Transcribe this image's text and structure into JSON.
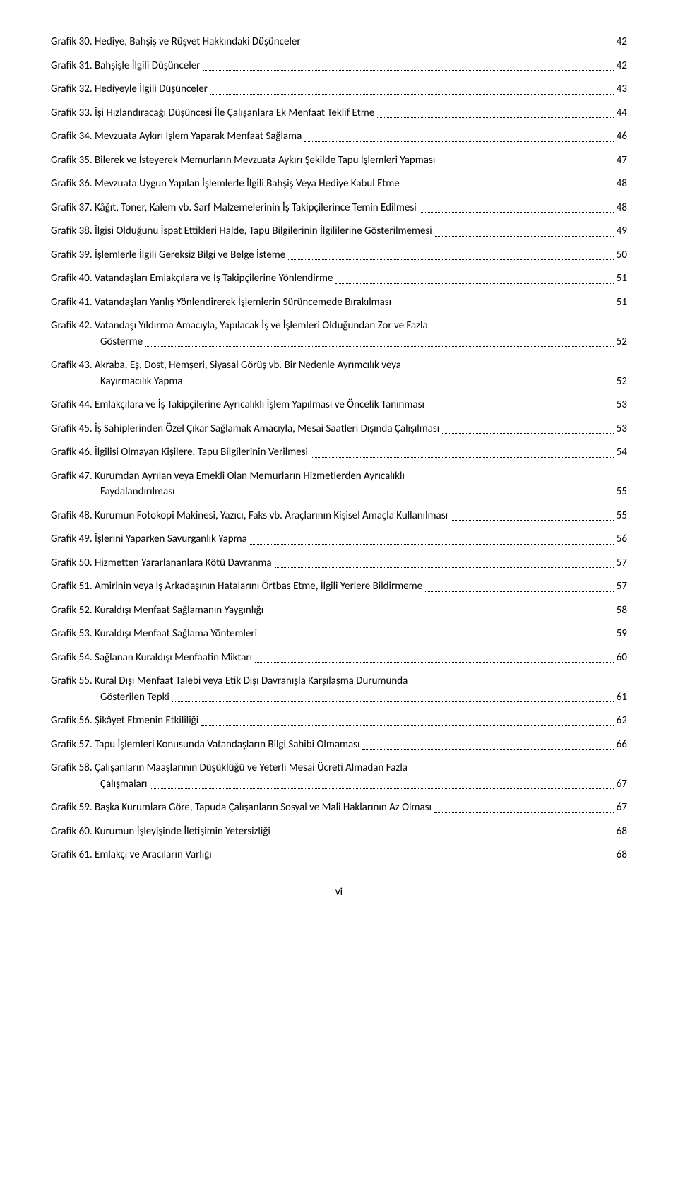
{
  "entries": [
    {
      "label": "Grafik 30.",
      "text": "Hediye, Bahşiş ve Rüşvet Hakkındaki Düşünceler",
      "page": "42"
    },
    {
      "label": "Grafik 31.",
      "text": "Bahşişle İlgili Düşünceler",
      "page": "42"
    },
    {
      "label": "Grafik 32.",
      "text": "Hediyeyle İlgili Düşünceler",
      "page": "43"
    },
    {
      "label": "Grafik 33.",
      "text": "İşi Hızlandıracağı Düşüncesi İle Çalışanlara Ek Menfaat Teklif Etme",
      "page": "44"
    },
    {
      "label": "Grafik 34.",
      "text": "Mevzuata Aykırı İşlem Yaparak Menfaat Sağlama",
      "page": "46"
    },
    {
      "label": "Grafik 35.",
      "text": "Bilerek ve İsteyerek Memurların Mevzuata Aykırı Şekilde Tapu İşlemleri Yapması",
      "page": "47"
    },
    {
      "label": "Grafik 36.",
      "text": "Mevzuata Uygun Yapılan İşlemlerle İlgili Bahşiş Veya Hediye Kabul Etme",
      "page": "48"
    },
    {
      "label": "Grafik 37.",
      "text": "Kâğıt, Toner, Kalem vb. Sarf Malzemelerinin İş Takipçilerince Temin Edilmesi",
      "page": "48"
    },
    {
      "label": "Grafik 38.",
      "text": "İlgisi Olduğunu İspat Ettikleri Halde, Tapu Bilgilerinin İlgililerine Gösterilmemesi",
      "page": "49"
    },
    {
      "label": "Grafik 39.",
      "text": "İşlemlerle İlgili Gereksiz Bilgi ve Belge İsteme",
      "page": "50"
    },
    {
      "label": "Grafik 40.",
      "text": "Vatandaşları Emlakçılara ve İş Takipçilerine Yönlendirme",
      "page": "51"
    },
    {
      "label": "Grafik 41.",
      "text": "Vatandaşları Yanlış Yönlendirerek İşlemlerin Sürüncemede Bırakılması",
      "page": "51"
    },
    {
      "label": "Grafik 42.",
      "line1": "Vatandaşı Yıldırma Amacıyla, Yapılacak İş ve İşlemleri Olduğundan Zor ve Fazla",
      "line2": "Gösterme",
      "page": "52",
      "multiline": true
    },
    {
      "label": "Grafik 43.",
      "line1": "Akraba, Eş, Dost, Hemşeri, Siyasal Görüş vb. Bir Nedenle Ayrımcılık veya",
      "line2": "Kayırmacılık Yapma",
      "page": "52",
      "multiline": true
    },
    {
      "label": "Grafik 44.",
      "text": "Emlakçılara ve İş Takipçilerine Ayrıcalıklı İşlem Yapılması ve Öncelik Tanınması",
      "page": "53"
    },
    {
      "label": "Grafik 45.",
      "text": "İş Sahiplerinden Özel Çıkar Sağlamak Amacıyla, Mesai Saatleri Dışında Çalışılması",
      "page": "53"
    },
    {
      "label": "Grafik 46.",
      "text": "İlgilisi Olmayan Kişilere, Tapu Bilgilerinin Verilmesi",
      "page": "54"
    },
    {
      "label": "Grafik 47.",
      "line1": "Kurumdan Ayrılan veya Emekli Olan Memurların Hizmetlerden Ayrıcalıklı",
      "line2": "Faydalandırılması",
      "page": "55",
      "multiline": true
    },
    {
      "label": "Grafik 48.",
      "text": "Kurumun Fotokopi Makinesi, Yazıcı, Faks vb. Araçlarının Kişisel Amaçla Kullanılması",
      "page": "55"
    },
    {
      "label": "Grafik 49.",
      "text": "İşlerini Yaparken Savurganlık Yapma",
      "page": "56"
    },
    {
      "label": "Grafik 50.",
      "text": "Hizmetten Yararlananlara Kötü Davranma",
      "page": "57"
    },
    {
      "label": "Grafik 51.",
      "text": "Amirinin veya İş Arkadaşının Hatalarını Örtbas Etme, İlgili Yerlere Bildirmeme",
      "page": "57"
    },
    {
      "label": "Grafik 52.",
      "text": "Kuraldışı Menfaat Sağlamanın Yaygınlığı",
      "page": "58"
    },
    {
      "label": "Grafik 53.",
      "text": "Kuraldışı Menfaat Sağlama Yöntemleri",
      "page": "59"
    },
    {
      "label": "Grafik 54.",
      "text": "Sağlanan Kuraldışı Menfaatin Miktarı",
      "page": "60"
    },
    {
      "label": "Grafik 55.",
      "line1": "Kural Dışı Menfaat Talebi veya Etik Dışı Davranışla Karşılaşma Durumunda",
      "line2": "Gösterilen Tepki",
      "page": "61",
      "multiline": true
    },
    {
      "label": "Grafik 56.",
      "text": "Şikâyet Etmenin Etkililiği",
      "page": "62"
    },
    {
      "label": "Grafik 57.",
      "text": "Tapu İşlemleri Konusunda Vatandaşların Bilgi Sahibi Olmaması",
      "page": "66"
    },
    {
      "label": "Grafik 58.",
      "line1": "Çalışanların Maaşlarının Düşüklüğü ve Yeterli Mesai Ücreti Almadan Fazla",
      "line2": "Çalışmaları",
      "page": "67",
      "multiline": true
    },
    {
      "label": "Grafik 59.",
      "text": "Başka Kurumlara Göre, Tapuda Çalışanların Sosyal ve Mali Haklarının Az Olması",
      "page": "67"
    },
    {
      "label": "Grafik 60.",
      "text": "Kurumun İşleyişinde İletişimin Yetersizliği",
      "page": "68"
    },
    {
      "label": "Grafik 61.",
      "text": "Emlakçı ve Aracıların Varlığı",
      "page": "68"
    }
  ],
  "footer": "vi"
}
